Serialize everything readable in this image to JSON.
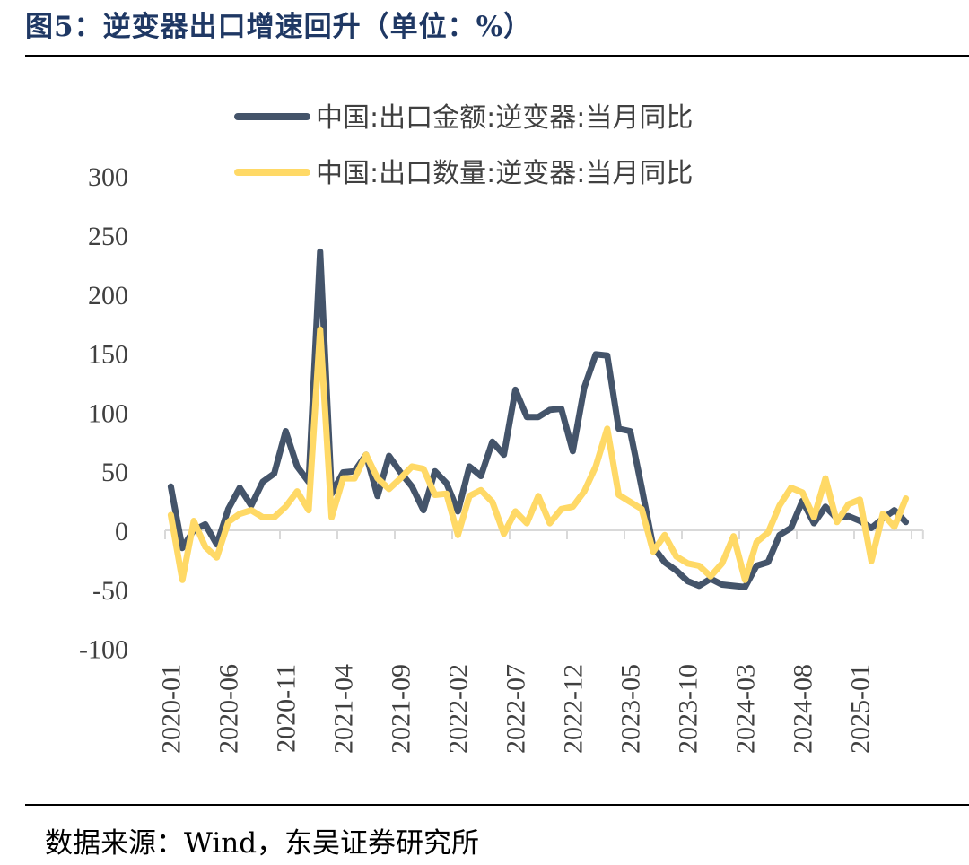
{
  "header": {
    "title": "图5：逆变器出口增速回升（单位：%）"
  },
  "footer": {
    "source": "数据来源：Wind，东吴证券研究所"
  },
  "chart_data": {
    "type": "line",
    "title": "图5：逆变器出口增速回升（单位：%）",
    "xlabel": "",
    "ylabel": "%",
    "ylim": [
      -100,
      300
    ],
    "yticks": [
      -100,
      -50,
      0,
      50,
      100,
      150,
      200,
      250,
      300
    ],
    "xtick_labels": [
      "2020-01",
      "2020-06",
      "2020-11",
      "2021-04",
      "2021-09",
      "2022-02",
      "2022-07",
      "2022-12",
      "2023-05",
      "2023-10",
      "2024-03",
      "2024-08",
      "2025-01"
    ],
    "grid": false,
    "legend_position": "top",
    "x_start": "2020-01",
    "x_end": "2025-05",
    "series": [
      {
        "name": "中国:出口金额:逆变器:当月同比",
        "color": "#44546a",
        "values": [
          37,
          -15,
          0,
          5,
          -12,
          18,
          36,
          21,
          41,
          48,
          84,
          54,
          41,
          236,
          31,
          49,
          50,
          64,
          29,
          63,
          49,
          37,
          17,
          50,
          40,
          16,
          54,
          46,
          75,
          64,
          119,
          96,
          96,
          102,
          103,
          67,
          121,
          149,
          148,
          86,
          84,
          36,
          -14,
          -27,
          -34,
          -43,
          -47,
          -41,
          -46,
          -47,
          -48,
          -30,
          -27,
          -4,
          2,
          25,
          6,
          20,
          10,
          12,
          8,
          2,
          10,
          17,
          7
        ]
      },
      {
        "name": "中国:出口数量:逆变器:当月同比",
        "color": "#ffd966",
        "values": [
          13,
          -42,
          8,
          -14,
          -23,
          7,
          14,
          17,
          11,
          11,
          20,
          33,
          17,
          170,
          11,
          44,
          44,
          64,
          44,
          35,
          44,
          54,
          52,
          30,
          31,
          -4,
          29,
          34,
          24,
          -3,
          16,
          6,
          29,
          6,
          18,
          20,
          33,
          54,
          86,
          30,
          24,
          18,
          -18,
          -4,
          -22,
          -28,
          -30,
          -39,
          -28,
          -5,
          -42,
          -10,
          -2,
          21,
          36,
          32,
          11,
          44,
          7,
          22,
          26,
          -26,
          14,
          3,
          27
        ]
      }
    ]
  }
}
